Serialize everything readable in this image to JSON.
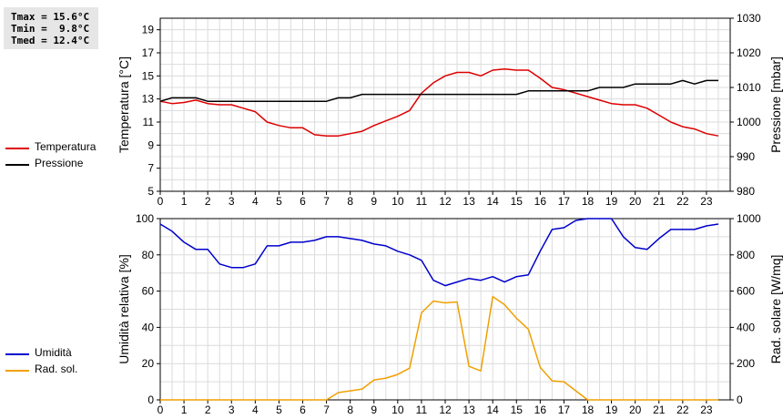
{
  "stats": {
    "tmax": "Tmax = 15.6°C",
    "tmin": "Tmin =  9.8°C",
    "tmed": "Tmed = 12.4°C"
  },
  "legend_top": [
    {
      "label": "Temperatura",
      "color": "#dd0000"
    },
    {
      "label": "Pressione",
      "color": "#000000"
    }
  ],
  "legend_bottom": [
    {
      "label": "Umidità",
      "color": "#0000cc"
    },
    {
      "label": "Rad. sol.",
      "color": "#f0a000"
    }
  ],
  "chart_data": [
    {
      "type": "line",
      "ylabel": "Temperatura [°C]",
      "y2label": "Pressione [mbar]",
      "xlim": [
        0,
        24
      ],
      "ylim": [
        5,
        20
      ],
      "y2lim": [
        980,
        1030
      ],
      "xticks": [
        0,
        1,
        2,
        3,
        4,
        5,
        6,
        7,
        8,
        9,
        10,
        11,
        12,
        13,
        14,
        15,
        16,
        17,
        18,
        19,
        20,
        21,
        22,
        23
      ],
      "yticks": [
        5,
        7,
        9,
        11,
        13,
        15,
        17,
        19
      ],
      "y2ticks": [
        980,
        990,
        1000,
        1010,
        1020,
        1030
      ],
      "grid": true,
      "series": [
        {
          "name": "Temperatura",
          "axis": "left",
          "color": "#dd0000",
          "x": [
            0,
            0.5,
            1,
            1.5,
            2,
            2.5,
            3,
            3.5,
            4,
            4.5,
            5,
            5.5,
            6,
            6.5,
            7,
            7.5,
            8,
            8.5,
            9,
            9.5,
            10,
            10.5,
            11,
            11.5,
            12,
            12.5,
            13,
            13.5,
            14,
            14.5,
            15,
            15.5,
            16,
            16.5,
            17,
            17.5,
            18,
            18.5,
            19,
            19.5,
            20,
            20.5,
            21,
            21.5,
            22,
            22.5,
            23,
            23.5
          ],
          "y": [
            12.8,
            12.6,
            12.7,
            12.9,
            12.6,
            12.5,
            12.5,
            12.2,
            11.9,
            11.0,
            10.7,
            10.5,
            10.5,
            9.9,
            9.8,
            9.8,
            10.0,
            10.2,
            10.7,
            11.1,
            11.5,
            12.0,
            13.5,
            14.4,
            15.0,
            15.3,
            15.3,
            15.0,
            15.5,
            15.6,
            15.5,
            15.5,
            14.8,
            14.0,
            13.8,
            13.5,
            13.2,
            12.9,
            12.6,
            12.5,
            12.5,
            12.2,
            11.6,
            11.0,
            10.6,
            10.4,
            10.0,
            9.8
          ]
        },
        {
          "name": "Pressione",
          "axis": "right",
          "color": "#000000",
          "x": [
            0,
            0.5,
            1,
            1.5,
            2,
            2.5,
            3,
            3.5,
            4,
            4.5,
            5,
            5.5,
            6,
            6.5,
            7,
            7.5,
            8,
            8.5,
            9,
            9.5,
            10,
            10.5,
            11,
            11.5,
            12,
            12.5,
            13,
            13.5,
            14,
            14.5,
            15,
            15.5,
            16,
            16.5,
            17,
            17.5,
            18,
            18.5,
            19,
            19.5,
            20,
            20.5,
            21,
            21.5,
            22,
            22.5,
            23,
            23.5
          ],
          "y": [
            1006,
            1007,
            1007,
            1007,
            1006,
            1006,
            1006,
            1006,
            1006,
            1006,
            1006,
            1006,
            1006,
            1006,
            1006,
            1007,
            1007,
            1008,
            1008,
            1008,
            1008,
            1008,
            1008,
            1008,
            1008,
            1008,
            1008,
            1008,
            1008,
            1008,
            1008,
            1009,
            1009,
            1009,
            1009,
            1009,
            1009,
            1010,
            1010,
            1010,
            1011,
            1011,
            1011,
            1011,
            1012,
            1011,
            1012,
            1012
          ]
        }
      ]
    },
    {
      "type": "line",
      "ylabel": "Umidità relativa [%]",
      "y2label": "Rad. solare [W/mq]",
      "xlim": [
        0,
        24
      ],
      "ylim": [
        0,
        100
      ],
      "y2lim": [
        0,
        1000
      ],
      "xticks": [
        0,
        1,
        2,
        3,
        4,
        5,
        6,
        7,
        8,
        9,
        10,
        11,
        12,
        13,
        14,
        15,
        16,
        17,
        18,
        19,
        20,
        21,
        22,
        23
      ],
      "yticks": [
        0,
        20,
        40,
        60,
        80,
        100
      ],
      "y2ticks": [
        0,
        200,
        400,
        600,
        800,
        1000
      ],
      "grid": true,
      "series": [
        {
          "name": "Umidità",
          "axis": "left",
          "color": "#0000cc",
          "x": [
            0,
            0.5,
            1,
            1.5,
            2,
            2.5,
            3,
            3.5,
            4,
            4.5,
            5,
            5.5,
            6,
            6.5,
            7,
            7.5,
            8,
            8.5,
            9,
            9.5,
            10,
            10.5,
            11,
            11.5,
            12,
            12.5,
            13,
            13.5,
            14,
            14.5,
            15,
            15.5,
            16,
            16.5,
            17,
            17.5,
            18,
            18.5,
            19,
            19.5,
            20,
            20.5,
            21,
            21.5,
            22,
            22.5,
            23,
            23.5
          ],
          "y": [
            97,
            93,
            87,
            83,
            83,
            75,
            73,
            73,
            75,
            85,
            85,
            87,
            87,
            88,
            90,
            90,
            89,
            88,
            86,
            85,
            82,
            80,
            77,
            66,
            63,
            65,
            67,
            66,
            68,
            65,
            68,
            69,
            82,
            94,
            95,
            99,
            100,
            100,
            100,
            90,
            84,
            83,
            89,
            94,
            94,
            94,
            96,
            97
          ]
        },
        {
          "name": "Rad. sol.",
          "axis": "right",
          "color": "#f0a000",
          "x": [
            0,
            0.5,
            1,
            1.5,
            2,
            2.5,
            3,
            3.5,
            4,
            4.5,
            5,
            5.5,
            6,
            6.5,
            7,
            7.5,
            8,
            8.5,
            9,
            9.5,
            10,
            10.5,
            11,
            11.5,
            12,
            12.5,
            13,
            13.5,
            14,
            14.5,
            15,
            15.5,
            16,
            16.5,
            17,
            17.5,
            18,
            18.5,
            19,
            19.5,
            20,
            20.5,
            21,
            21.5,
            22,
            22.5,
            23,
            23.5
          ],
          "y": [
            0,
            0,
            0,
            0,
            0,
            0,
            0,
            0,
            0,
            0,
            0,
            0,
            0,
            0,
            0,
            40,
            50,
            60,
            110,
            120,
            140,
            175,
            480,
            545,
            535,
            540,
            185,
            160,
            570,
            525,
            450,
            390,
            180,
            105,
            100,
            50,
            0,
            0,
            0,
            0,
            0,
            0,
            0,
            0,
            0,
            0,
            0,
            0
          ]
        }
      ]
    }
  ]
}
